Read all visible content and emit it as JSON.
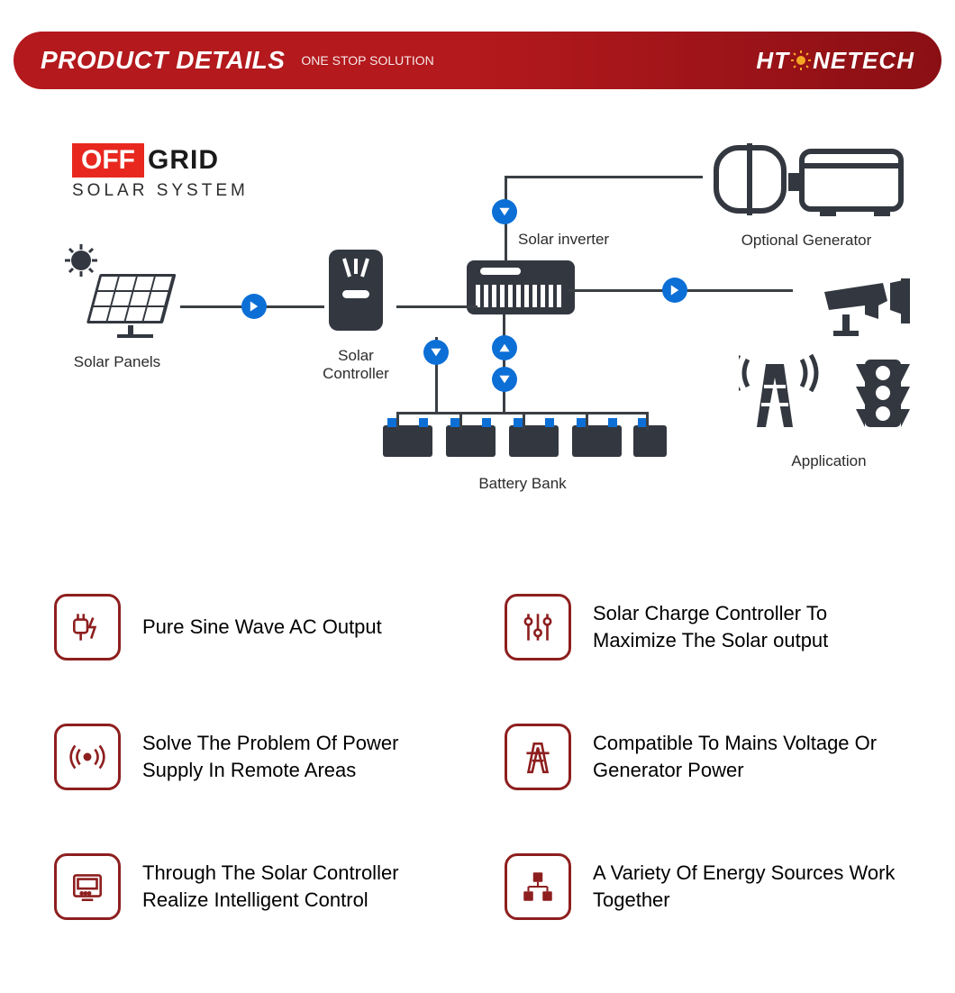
{
  "colors": {
    "header_gradient_a": "#b3191d",
    "header_gradient_b": "#8a0f14",
    "brand_accent": "#f5a623",
    "title_off_bg": "#e8281f",
    "title_sub": "#1a1a1a",
    "label": "#2c2c2c",
    "arrow_bg": "#0c6fd6",
    "arrow_fg": "#ffffff",
    "icon_dark": "#333840",
    "feature_border": "#8e1f1f",
    "feature_icon": "#8e1f1f",
    "line": "#3a3f44"
  },
  "header": {
    "title": "PRODUCT DETAILS",
    "subtitle": "ONE STOP SOLUTION",
    "brand_pre": "HT",
    "brand_post": "NETECH"
  },
  "title": {
    "off": "OFF",
    "grid": "GRID",
    "sub": "SOLAR SYSTEM"
  },
  "labels": {
    "solar_panels": "Solar Panels",
    "solar_controller": "Solar Controller",
    "solar_inverter": "Solar inverter",
    "generator": "Optional Generator",
    "battery_bank": "Battery Bank",
    "application": "Application"
  },
  "features": [
    {
      "text": "Pure Sine Wave AC Output",
      "icon": "plug"
    },
    {
      "text": "Solar Charge Controller To Maximize The Solar output",
      "icon": "sliders"
    },
    {
      "text": "Solve The Problem Of Power Supply In Remote Areas",
      "icon": "signal"
    },
    {
      "text": "Compatible To Mains Voltage Or Generator Power",
      "icon": "tower"
    },
    {
      "text": "Through The Solar Controller Realize Intelligent Control",
      "icon": "monitor"
    },
    {
      "text": "A Variety Of Energy Sources Work Together",
      "icon": "nodes"
    }
  ]
}
